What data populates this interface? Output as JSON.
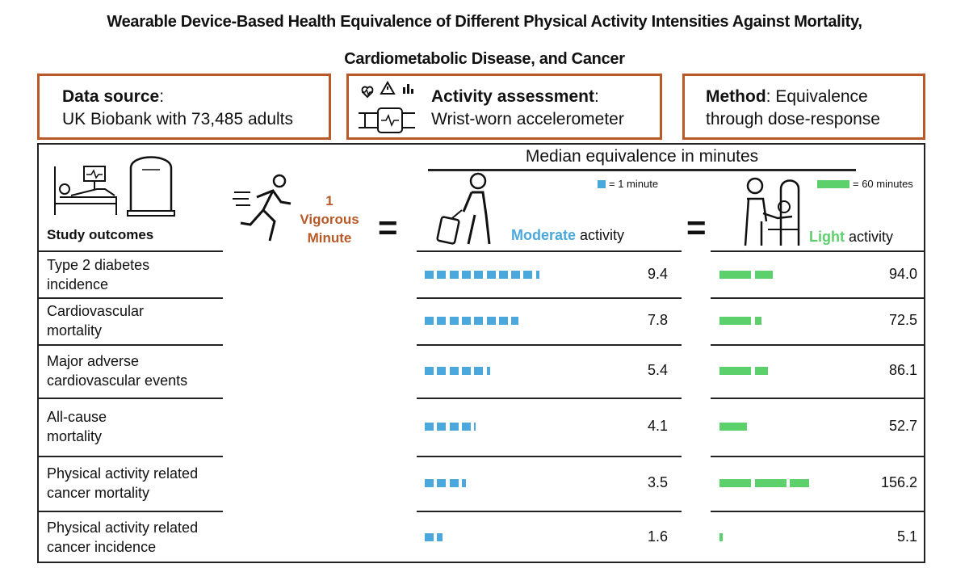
{
  "title": {
    "line1": "Wearable Device-Based Health Equivalence of Different Physical Activity Intensities Against Mortality,",
    "line2": "Cardiometabolic Disease, and Cancer"
  },
  "info_boxes": {
    "data_source": {
      "label": "Data source",
      "colon": ":",
      "value": "UK Biobank with 73,485 adults"
    },
    "activity_assessment": {
      "label": "Activity assessment",
      "colon": ":",
      "value": "Wrist-worn accelerometer"
    },
    "method": {
      "label": "Method",
      "colon": ": Equivalence",
      "value": "through dose-response"
    }
  },
  "colors": {
    "accent": "#b85a28",
    "moderate": "#4aa8dd",
    "light": "#5cd06a"
  },
  "panel": {
    "outcomes_header": "Study outcomes",
    "vigorous": {
      "number": "1",
      "word1": "Vigorous",
      "word2": "Minute"
    },
    "equals": "=",
    "median_title": "Median equivalence in minutes",
    "moderate_legend": "= 1 minute",
    "light_legend": "= 60 minutes",
    "moderate_label_colored": "Moderate",
    "light_label_colored": "Light",
    "activity_suffix": " activity"
  },
  "chart_data": {
    "type": "bar",
    "title": "Median equivalence in minutes",
    "categories": [
      [
        "Type 2 diabetes",
        "incidence"
      ],
      [
        "Cardiovascular",
        "mortality"
      ],
      [
        "Major adverse",
        "cardiovascular events"
      ],
      [
        "All-cause",
        "mortality"
      ],
      [
        "Physical activity related",
        "cancer mortality"
      ],
      [
        "Physical activity related",
        "cancer incidence"
      ]
    ],
    "series": [
      {
        "name": "Moderate activity",
        "values": [
          9.4,
          7.8,
          5.4,
          4.1,
          3.5,
          1.6
        ],
        "labels": [
          "9.4",
          "7.8",
          "5.4",
          "4.1",
          "3.5",
          "1.6"
        ],
        "unit_per_block": 1
      },
      {
        "name": "Light activity",
        "values": [
          94.0,
          72.5,
          86.1,
          52.7,
          156.2,
          5.1
        ],
        "labels": [
          "94.0",
          "72.5",
          "86.1",
          "52.7",
          "156.2",
          "5.1"
        ],
        "unit_per_block": 60
      }
    ]
  }
}
